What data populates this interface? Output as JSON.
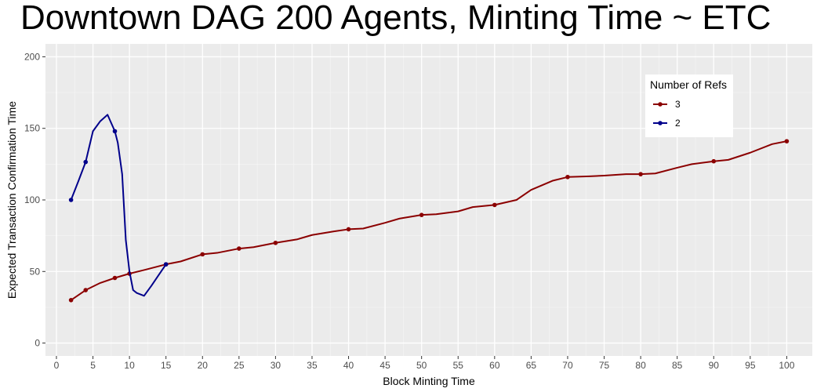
{
  "chart_data": {
    "type": "line",
    "title": "Downtown DAG 200 Agents, Minting Time ~ ETC",
    "xlabel": "Block Minting Time",
    "ylabel": "Expected Transaction Confirmation Time",
    "xlim": [
      -1.5,
      103.5
    ],
    "ylim": [
      -9,
      209
    ],
    "x_ticks": [
      0,
      5,
      10,
      15,
      20,
      25,
      30,
      35,
      40,
      45,
      50,
      55,
      60,
      65,
      70,
      75,
      80,
      85,
      90,
      95,
      100
    ],
    "y_ticks": [
      0,
      50,
      100,
      150,
      200
    ],
    "grid": true,
    "legend": {
      "title": "Number of Refs",
      "position": "top-right"
    },
    "series": [
      {
        "name": "3",
        "color": "#8b0000",
        "line": [
          [
            2,
            30
          ],
          [
            4,
            37
          ],
          [
            6,
            42
          ],
          [
            8,
            45.5
          ],
          [
            10,
            48.5
          ],
          [
            12,
            51
          ],
          [
            15,
            55
          ],
          [
            17,
            57
          ],
          [
            20,
            62
          ],
          [
            22,
            63
          ],
          [
            25,
            66
          ],
          [
            27,
            67
          ],
          [
            30,
            70
          ],
          [
            33,
            72.5
          ],
          [
            35,
            75.5
          ],
          [
            38,
            78
          ],
          [
            40,
            79.5
          ],
          [
            42,
            80
          ],
          [
            45,
            84
          ],
          [
            47,
            87
          ],
          [
            50,
            89.5
          ],
          [
            52,
            90
          ],
          [
            55,
            92
          ],
          [
            57,
            95
          ],
          [
            60,
            96.5
          ],
          [
            63,
            100
          ],
          [
            65,
            107
          ],
          [
            68,
            113.5
          ],
          [
            70,
            116
          ],
          [
            73,
            116.5
          ],
          [
            75,
            117
          ],
          [
            78,
            118
          ],
          [
            80,
            118
          ],
          [
            82,
            118.5
          ],
          [
            85,
            122.5
          ],
          [
            87,
            125
          ],
          [
            90,
            127
          ],
          [
            92,
            128
          ],
          [
            95,
            133
          ],
          [
            98,
            139
          ],
          [
            100,
            141
          ]
        ],
        "points": [
          [
            2,
            30
          ],
          [
            4,
            37
          ],
          [
            8,
            45.5
          ],
          [
            10,
            48.5
          ],
          [
            15,
            55
          ],
          [
            20,
            62
          ],
          [
            25,
            66
          ],
          [
            30,
            70
          ],
          [
            40,
            79.5
          ],
          [
            50,
            89.5
          ],
          [
            60,
            96.5
          ],
          [
            70,
            116
          ],
          [
            80,
            118
          ],
          [
            90,
            127
          ],
          [
            100,
            141
          ]
        ]
      },
      {
        "name": "2",
        "color": "#00008b",
        "line": [
          [
            2,
            100
          ],
          [
            3,
            113
          ],
          [
            4,
            126.5
          ],
          [
            5,
            148
          ],
          [
            6,
            155
          ],
          [
            7,
            159.5
          ],
          [
            8,
            148
          ],
          [
            8.4,
            140
          ],
          [
            9,
            118
          ],
          [
            9.5,
            72
          ],
          [
            10,
            50
          ],
          [
            10.5,
            37
          ],
          [
            11,
            35
          ],
          [
            12,
            33
          ],
          [
            13,
            40
          ],
          [
            14,
            47.5
          ],
          [
            15,
            55
          ]
        ],
        "points": [
          [
            2,
            100
          ],
          [
            4,
            126.5
          ],
          [
            8,
            148
          ],
          [
            15,
            55
          ]
        ]
      }
    ]
  }
}
